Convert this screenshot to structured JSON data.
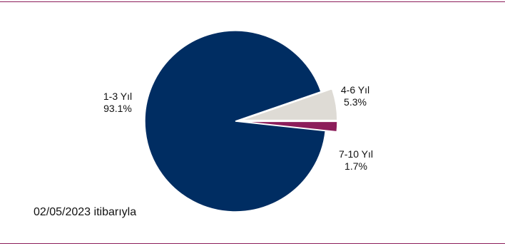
{
  "chart_data": {
    "type": "pie",
    "slices": [
      {
        "label": "1-3 Yıl",
        "percent_label": "93.1%",
        "value": 93.1,
        "color": "#002d62"
      },
      {
        "label": "4-6 Yıl",
        "percent_label": "5.3%",
        "value": 5.3,
        "color": "#dedbd5"
      },
      {
        "label": "7-10 Yıl",
        "percent_label": "1.7%",
        "value": 1.7,
        "color": "#8c1d5a"
      }
    ]
  },
  "footnote": "02/05/2023  itibarıyla",
  "colors": {
    "rule": "#8c1d5a",
    "edge": "#ffffff"
  }
}
